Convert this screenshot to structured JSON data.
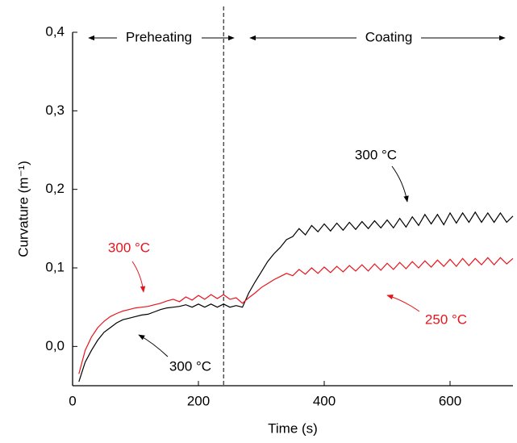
{
  "chart_data": {
    "type": "line",
    "x_label": "Time (s)",
    "y_label": "Curvature (m⁻¹)",
    "xlim": [
      0,
      700
    ],
    "xticks": [
      0,
      200,
      400,
      600
    ],
    "ylim": [
      -0.05,
      0.4
    ],
    "yticks": [
      {
        "value": 0.0,
        "label": "0,0"
      },
      {
        "value": 0.1,
        "label": "0,1"
      },
      {
        "value": 0.2,
        "label": "0,2"
      },
      {
        "value": 0.3,
        "label": "0,3"
      },
      {
        "value": 0.4,
        "label": "0,4"
      }
    ],
    "divider_x": 240,
    "phases": [
      "Preheating",
      "Coating"
    ],
    "annotations": [
      {
        "text": "300 °C",
        "color": "#000000"
      },
      {
        "text": "300 °C",
        "color": "#e8141c"
      },
      {
        "text": "300 °C",
        "color": "#000000"
      },
      {
        "text": "250 °C",
        "color": "#e8141c"
      }
    ],
    "x": [
      10,
      20,
      30,
      40,
      50,
      60,
      70,
      80,
      90,
      100,
      110,
      120,
      130,
      140,
      150,
      160,
      170,
      180,
      190,
      200,
      210,
      220,
      230,
      240,
      250,
      260,
      270,
      280,
      290,
      300,
      310,
      320,
      330,
      340,
      350,
      360,
      370,
      380,
      390,
      400,
      410,
      420,
      430,
      440,
      450,
      460,
      470,
      480,
      490,
      500,
      510,
      520,
      530,
      540,
      550,
      560,
      570,
      580,
      590,
      600,
      610,
      620,
      630,
      640,
      650,
      660,
      670,
      680,
      690,
      700
    ],
    "series": [
      {
        "color": "#000000",
        "values": [
          -0.045,
          -0.02,
          -0.005,
          0.008,
          0.018,
          0.024,
          0.03,
          0.034,
          0.036,
          0.038,
          0.04,
          0.041,
          0.044,
          0.047,
          0.049,
          0.05,
          0.051,
          0.053,
          0.05,
          0.054,
          0.05,
          0.054,
          0.05,
          0.054,
          0.05,
          0.052,
          0.05,
          0.068,
          0.082,
          0.095,
          0.108,
          0.118,
          0.126,
          0.136,
          0.14,
          0.15,
          0.142,
          0.154,
          0.146,
          0.156,
          0.147,
          0.157,
          0.148,
          0.158,
          0.149,
          0.159,
          0.15,
          0.16,
          0.151,
          0.161,
          0.151,
          0.163,
          0.152,
          0.165,
          0.154,
          0.168,
          0.156,
          0.168,
          0.155,
          0.17,
          0.157,
          0.17,
          0.158,
          0.171,
          0.158,
          0.17,
          0.158,
          0.17,
          0.158,
          0.166
        ]
      },
      {
        "color": "#e8141c",
        "values": [
          -0.035,
          -0.005,
          0.012,
          0.024,
          0.032,
          0.038,
          0.042,
          0.045,
          0.047,
          0.049,
          0.05,
          0.051,
          0.053,
          0.055,
          0.058,
          0.06,
          0.057,
          0.063,
          0.059,
          0.065,
          0.06,
          0.066,
          0.061,
          0.066,
          0.06,
          0.062,
          0.055,
          0.062,
          0.068,
          0.075,
          0.08,
          0.085,
          0.089,
          0.093,
          0.09,
          0.098,
          0.092,
          0.1,
          0.093,
          0.101,
          0.094,
          0.102,
          0.095,
          0.103,
          0.096,
          0.104,
          0.096,
          0.105,
          0.097,
          0.106,
          0.098,
          0.107,
          0.099,
          0.108,
          0.1,
          0.109,
          0.101,
          0.11,
          0.102,
          0.111,
          0.102,
          0.112,
          0.103,
          0.112,
          0.104,
          0.113,
          0.104,
          0.113,
          0.105,
          0.112
        ]
      }
    ]
  }
}
